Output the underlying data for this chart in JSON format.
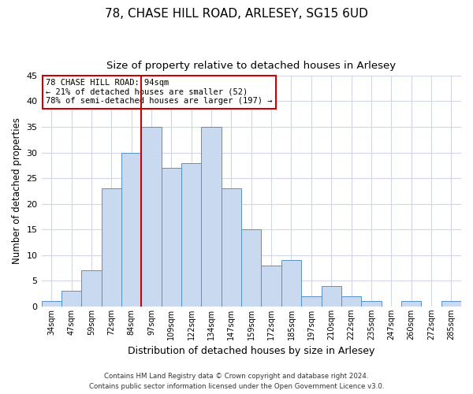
{
  "title": "78, CHASE HILL ROAD, ARLESEY, SG15 6UD",
  "subtitle": "Size of property relative to detached houses in Arlesey",
  "xlabel": "Distribution of detached houses by size in Arlesey",
  "ylabel": "Number of detached properties",
  "bar_labels": [
    "34sqm",
    "47sqm",
    "59sqm",
    "72sqm",
    "84sqm",
    "97sqm",
    "109sqm",
    "122sqm",
    "134sqm",
    "147sqm",
    "159sqm",
    "172sqm",
    "185sqm",
    "197sqm",
    "210sqm",
    "222sqm",
    "235sqm",
    "247sqm",
    "260sqm",
    "272sqm",
    "285sqm"
  ],
  "bar_values": [
    1,
    3,
    7,
    23,
    30,
    35,
    27,
    28,
    35,
    23,
    15,
    8,
    9,
    2,
    4,
    2,
    1,
    0,
    1,
    0,
    1
  ],
  "bar_color": "#c8d9f0",
  "bar_edge_color": "#5b8fc9",
  "vline_color": "#cc0000",
  "vline_index": 5,
  "ylim": [
    0,
    45
  ],
  "yticks": [
    0,
    5,
    10,
    15,
    20,
    25,
    30,
    35,
    40,
    45
  ],
  "annotation_title": "78 CHASE HILL ROAD: 94sqm",
  "annotation_line1": "← 21% of detached houses are smaller (52)",
  "annotation_line2": "78% of semi-detached houses are larger (197) →",
  "box_color": "#ffffff",
  "box_edge_color": "#cc0000",
  "title_fontsize": 11,
  "subtitle_fontsize": 9.5,
  "ylabel_fontsize": 8.5,
  "xlabel_fontsize": 9,
  "footer_line1": "Contains HM Land Registry data © Crown copyright and database right 2024.",
  "footer_line2": "Contains public sector information licensed under the Open Government Licence v3.0.",
  "background_color": "#ffffff",
  "grid_color": "#d0d8e8"
}
